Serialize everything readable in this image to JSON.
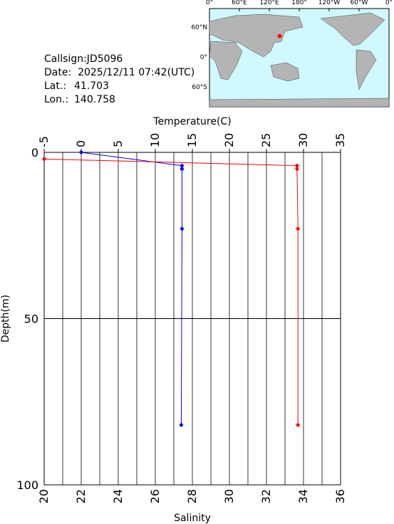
{
  "header": {
    "callsign": "Callsign:JD5096",
    "date": "Date:  2025/12/11 07:42(UTC)",
    "lat_label": "Lat.:",
    "lon_label": "Lon.:"
  },
  "station": {
    "lat": 41.703,
    "lon": 140.758
  },
  "map": {
    "lon_labels": [
      "0°",
      "60°E",
      "120°E",
      "180°",
      "120°W",
      "60°W",
      "0°"
    ],
    "lat_labels": [
      "60°N",
      "0°",
      "60°S"
    ],
    "marker_color": "#ff0000"
  },
  "chart_data": {
    "type": "profile",
    "x_label": "Temperature(C)",
    "x2_label": "Salinity",
    "y_label": "Depth(m)",
    "xlim": [
      -5,
      35
    ],
    "xticks": [
      -5,
      0,
      5,
      10,
      15,
      20,
      25,
      30,
      35
    ],
    "x2lim": [
      20,
      36
    ],
    "x2ticks": [
      20,
      22,
      24,
      26,
      28,
      30,
      32,
      34,
      36
    ],
    "x2_minor_ticks": [
      21,
      23,
      25,
      27,
      29,
      31,
      33,
      35
    ],
    "ylim": [
      0,
      100
    ],
    "yticks": [
      0,
      50,
      100
    ],
    "y_inverted": true,
    "grid": true,
    "series": [
      {
        "color": "#0000ff",
        "axis": "x",
        "y": [
          0,
          4,
          5,
          23,
          82
        ],
        "values": [
          0,
          13.6,
          13.6,
          13.6,
          13.5
        ]
      },
      {
        "color": "#ff0000",
        "axis": "x2",
        "y": [
          2,
          4,
          5,
          23,
          82
        ],
        "values": [
          20,
          33.65,
          33.65,
          33.7,
          33.7
        ]
      }
    ]
  }
}
